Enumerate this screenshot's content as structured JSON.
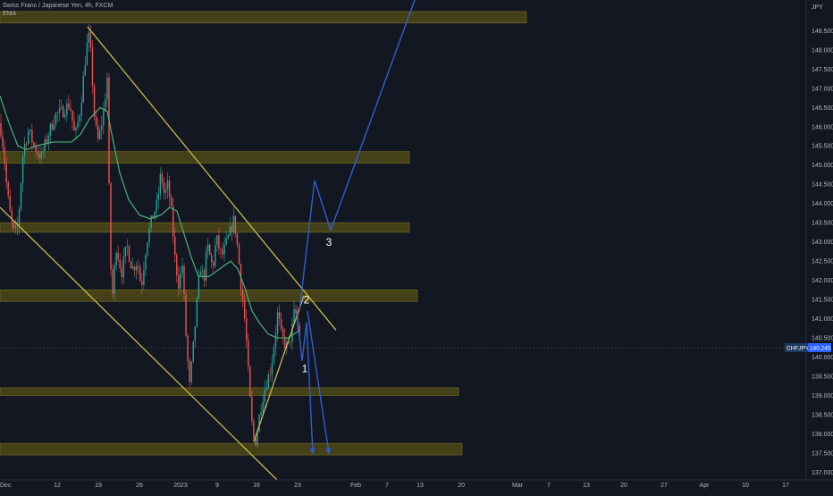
{
  "header": {
    "symbol_line": "Swiss Franc / Japanese Yen, 4h, FXCM",
    "indicator": "EMA"
  },
  "price_tag": {
    "symbol": "CHFJPY",
    "value": "140.245"
  },
  "colors": {
    "background": "#131722",
    "bull": "#26a69a",
    "bear": "#ef5350",
    "ema": "#4caf78",
    "trendline": "#c8b84a",
    "zone_fill": "#4a4516",
    "projection": "#2f5fd0",
    "axis_text": "#b2b5be",
    "price_tag_bg": "#1e3a5f"
  },
  "chart_data": {
    "type": "candlestick",
    "title": "Swiss Franc / Japanese Yen, 4h, FXCM",
    "ylabel": "JPY",
    "ylim": [
      136.8,
      149.3
    ],
    "y_ticks": [
      "137.000",
      "137.500",
      "138.000",
      "138.500",
      "139.000",
      "139.500",
      "140.000",
      "140.500",
      "141.000",
      "141.500",
      "142.000",
      "142.500",
      "143.000",
      "143.500",
      "144.000",
      "144.500",
      "145.000",
      "145.500",
      "146.000",
      "146.500",
      "147.000",
      "147.500",
      "148.000",
      "148.500"
    ],
    "x_ticks": [
      "Dec",
      "12",
      "19",
      "26",
      "2023",
      "9",
      "16",
      "23",
      "Feb",
      "7",
      "13",
      "20",
      "Mar",
      "7",
      "13",
      "20",
      "27",
      "Apr",
      "10",
      "17"
    ],
    "price_path": [
      [
        0,
        146.1
      ],
      [
        4,
        145.4
      ],
      [
        8,
        144.3
      ],
      [
        12,
        143.6
      ],
      [
        16,
        143.2
      ],
      [
        20,
        143.4
      ],
      [
        26,
        145.4
      ],
      [
        32,
        145.9
      ],
      [
        38,
        145.5
      ],
      [
        46,
        145.2
      ],
      [
        54,
        145.8
      ],
      [
        62,
        146.3
      ],
      [
        70,
        146.4
      ],
      [
        78,
        146.6
      ],
      [
        84,
        145.7
      ],
      [
        90,
        146.5
      ],
      [
        96,
        147.9
      ],
      [
        99,
        148.4
      ],
      [
        102,
        147.8
      ],
      [
        106,
        146.1
      ],
      [
        110,
        145.6
      ],
      [
        116,
        146.4
      ],
      [
        120,
        147.3
      ],
      [
        122,
        144.3
      ],
      [
        125,
        141.3
      ],
      [
        130,
        142.9
      ],
      [
        136,
        142.2
      ],
      [
        142,
        142.9
      ],
      [
        148,
        142.3
      ],
      [
        154,
        142.5
      ],
      [
        158,
        141.8
      ],
      [
        164,
        143.0
      ],
      [
        170,
        143.6
      ],
      [
        176,
        144.0
      ],
      [
        180,
        144.8
      ],
      [
        184,
        144.2
      ],
      [
        188,
        144.5
      ],
      [
        192,
        143.7
      ],
      [
        196,
        142.5
      ],
      [
        200,
        141.9
      ],
      [
        204,
        142.4
      ],
      [
        208,
        140.6
      ],
      [
        212,
        139.2
      ],
      [
        216,
        140.2
      ],
      [
        220,
        141.3
      ],
      [
        224,
        142.4
      ],
      [
        228,
        142.0
      ],
      [
        232,
        142.9
      ],
      [
        238,
        142.3
      ],
      [
        242,
        143.1
      ],
      [
        248,
        142.6
      ],
      [
        254,
        143.0
      ],
      [
        258,
        143.3
      ],
      [
        262,
        143.6
      ],
      [
        266,
        142.8
      ],
      [
        270,
        141.8
      ],
      [
        273,
        141.2
      ],
      [
        276,
        140.3
      ],
      [
        279,
        139.1
      ],
      [
        282,
        138.2
      ],
      [
        285,
        137.7
      ],
      [
        288,
        138.1
      ],
      [
        291,
        138.6
      ],
      [
        295,
        139.1
      ],
      [
        299,
        139.4
      ],
      [
        303,
        139.7
      ],
      [
        307,
        140.4
      ],
      [
        311,
        141.2
      ],
      [
        314,
        140.6
      ],
      [
        318,
        140.4
      ],
      [
        322,
        140.2
      ],
      [
        326,
        140.6
      ],
      [
        330,
        141.3
      ],
      [
        333,
        140.8
      ],
      [
        336,
        140.5
      ]
    ],
    "ema_path": [
      [
        0,
        146.8
      ],
      [
        10,
        146.1
      ],
      [
        20,
        145.5
      ],
      [
        30,
        145.4
      ],
      [
        40,
        145.5
      ],
      [
        60,
        145.6
      ],
      [
        80,
        145.6
      ],
      [
        90,
        145.8
      ],
      [
        100,
        146.2
      ],
      [
        112,
        146.5
      ],
      [
        120,
        146.4
      ],
      [
        126,
        145.7
      ],
      [
        134,
        144.8
      ],
      [
        144,
        144.1
      ],
      [
        156,
        143.7
      ],
      [
        168,
        143.6
      ],
      [
        180,
        143.7
      ],
      [
        190,
        143.9
      ],
      [
        198,
        143.8
      ],
      [
        206,
        143.2
      ],
      [
        214,
        142.6
      ],
      [
        222,
        142.1
      ],
      [
        234,
        142.1
      ],
      [
        246,
        142.3
      ],
      [
        258,
        142.5
      ],
      [
        266,
        142.3
      ],
      [
        274,
        141.8
      ],
      [
        282,
        141.2
      ],
      [
        290,
        140.9
      ],
      [
        300,
        140.6
      ],
      [
        310,
        140.5
      ],
      [
        322,
        140.5
      ],
      [
        336,
        140.7
      ]
    ],
    "zones": [
      {
        "x0": 0,
        "x1": 589,
        "y0": 148.7,
        "y1": 149.0
      },
      {
        "x0": 0,
        "x1": 458,
        "y0": 145.05,
        "y1": 145.35
      },
      {
        "x0": 0,
        "x1": 458,
        "y0": 143.25,
        "y1": 143.5
      },
      {
        "x0": 0,
        "x1": 467,
        "y0": 141.45,
        "y1": 141.75
      },
      {
        "x0": 0,
        "x1": 513,
        "y0": 139.0,
        "y1": 139.2
      },
      {
        "x0": 0,
        "x1": 517,
        "y0": 137.45,
        "y1": 137.75
      }
    ],
    "trendlines": [
      {
        "points": [
          [
            98,
            148.6
          ],
          [
            376,
            140.7
          ]
        ]
      },
      {
        "points": [
          [
            0,
            143.9
          ],
          [
            310,
            136.8
          ]
        ]
      },
      {
        "points": [
          [
            284,
            137.8
          ],
          [
            340,
            141.6
          ]
        ]
      }
    ],
    "projections": [
      {
        "points": [
          [
            335,
            141.2
          ],
          [
            352,
            144.6
          ],
          [
            370,
            143.3
          ],
          [
            464,
            149.3
          ]
        ]
      },
      {
        "points": [
          [
            332,
            141.2
          ],
          [
            338,
            139.9
          ],
          [
            343,
            140.9
          ],
          [
            350,
            137.5
          ]
        ]
      },
      {
        "points": [
          [
            344,
            141.2
          ],
          [
            368,
            137.5
          ]
        ]
      }
    ],
    "annotations": [
      {
        "text": "1",
        "x": 341,
        "y": 139.6
      },
      {
        "text": "2",
        "x": 343,
        "y": 141.4
      },
      {
        "text": "3",
        "x": 368,
        "y": 142.9
      }
    ],
    "current_price": 140.245
  }
}
